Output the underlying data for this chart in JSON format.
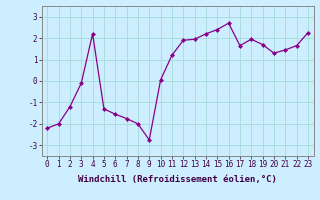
{
  "x": [
    0,
    1,
    2,
    3,
    4,
    5,
    6,
    7,
    8,
    9,
    10,
    11,
    12,
    13,
    14,
    15,
    16,
    17,
    18,
    19,
    20,
    21,
    22,
    23
  ],
  "y": [
    -2.2,
    -2.0,
    -1.2,
    -0.1,
    2.2,
    -1.3,
    -1.55,
    -1.75,
    -2.0,
    -2.75,
    0.05,
    1.2,
    1.9,
    1.95,
    2.2,
    2.4,
    2.7,
    1.65,
    1.95,
    1.7,
    1.3,
    1.45,
    1.65,
    2.25
  ],
  "line_color": "#880088",
  "marker": "D",
  "marker_size": 2,
  "bg_color": "#cceeff",
  "grid_color": "#aadddd",
  "xlabel": "Windchill (Refroidissement éolien,°C)",
  "ylim": [
    -3.5,
    3.5
  ],
  "xlim": [
    -0.5,
    23.5
  ],
  "yticks": [
    -3,
    -2,
    -1,
    0,
    1,
    2,
    3
  ],
  "xticks": [
    0,
    1,
    2,
    3,
    4,
    5,
    6,
    7,
    8,
    9,
    10,
    11,
    12,
    13,
    14,
    15,
    16,
    17,
    18,
    19,
    20,
    21,
    22,
    23
  ],
  "tick_fontsize": 5.5,
  "xlabel_fontsize": 6.5,
  "ylabel_fontsize": 6.5
}
